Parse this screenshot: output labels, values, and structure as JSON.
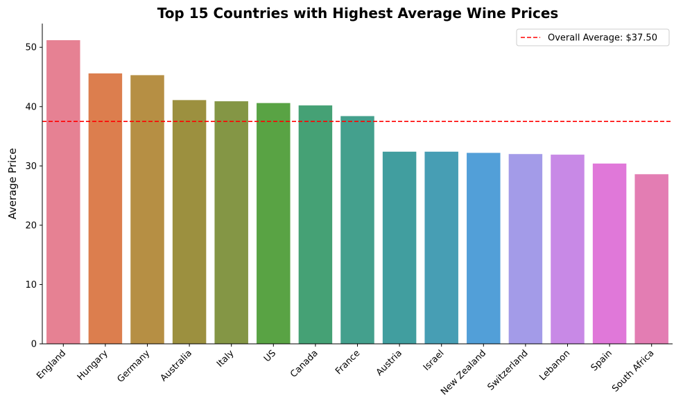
{
  "chart_data": {
    "type": "bar",
    "title": "Top 15 Countries with Highest Average Wine Prices",
    "xlabel": "",
    "ylabel": "Average Price",
    "ylim": [
      0,
      54
    ],
    "yticks": [
      0,
      10,
      20,
      30,
      40,
      50
    ],
    "categories": [
      "England",
      "Hungary",
      "Germany",
      "Australia",
      "Italy",
      "US",
      "Canada",
      "France",
      "Austria",
      "Israel",
      "New Zealand",
      "Switzerland",
      "Lebanon",
      "Spain",
      "South Africa"
    ],
    "values": [
      51.2,
      45.6,
      45.3,
      41.1,
      40.9,
      40.6,
      40.2,
      38.4,
      32.4,
      32.4,
      32.2,
      32.0,
      31.9,
      30.4,
      28.6
    ],
    "colors": [
      "#e68193",
      "#dc7e4e",
      "#b68f44",
      "#9c903f",
      "#849645",
      "#59a344",
      "#45a175",
      "#44a08d",
      "#419e9f",
      "#479eb4",
      "#529fd8",
      "#a39be8",
      "#c889e6",
      "#e078d9",
      "#e37db3"
    ],
    "reference_line": {
      "value": 37.5,
      "label": "Overall Average: $37.50",
      "color": "#ff0000"
    },
    "legend_position": "top-right",
    "grid": false
  }
}
